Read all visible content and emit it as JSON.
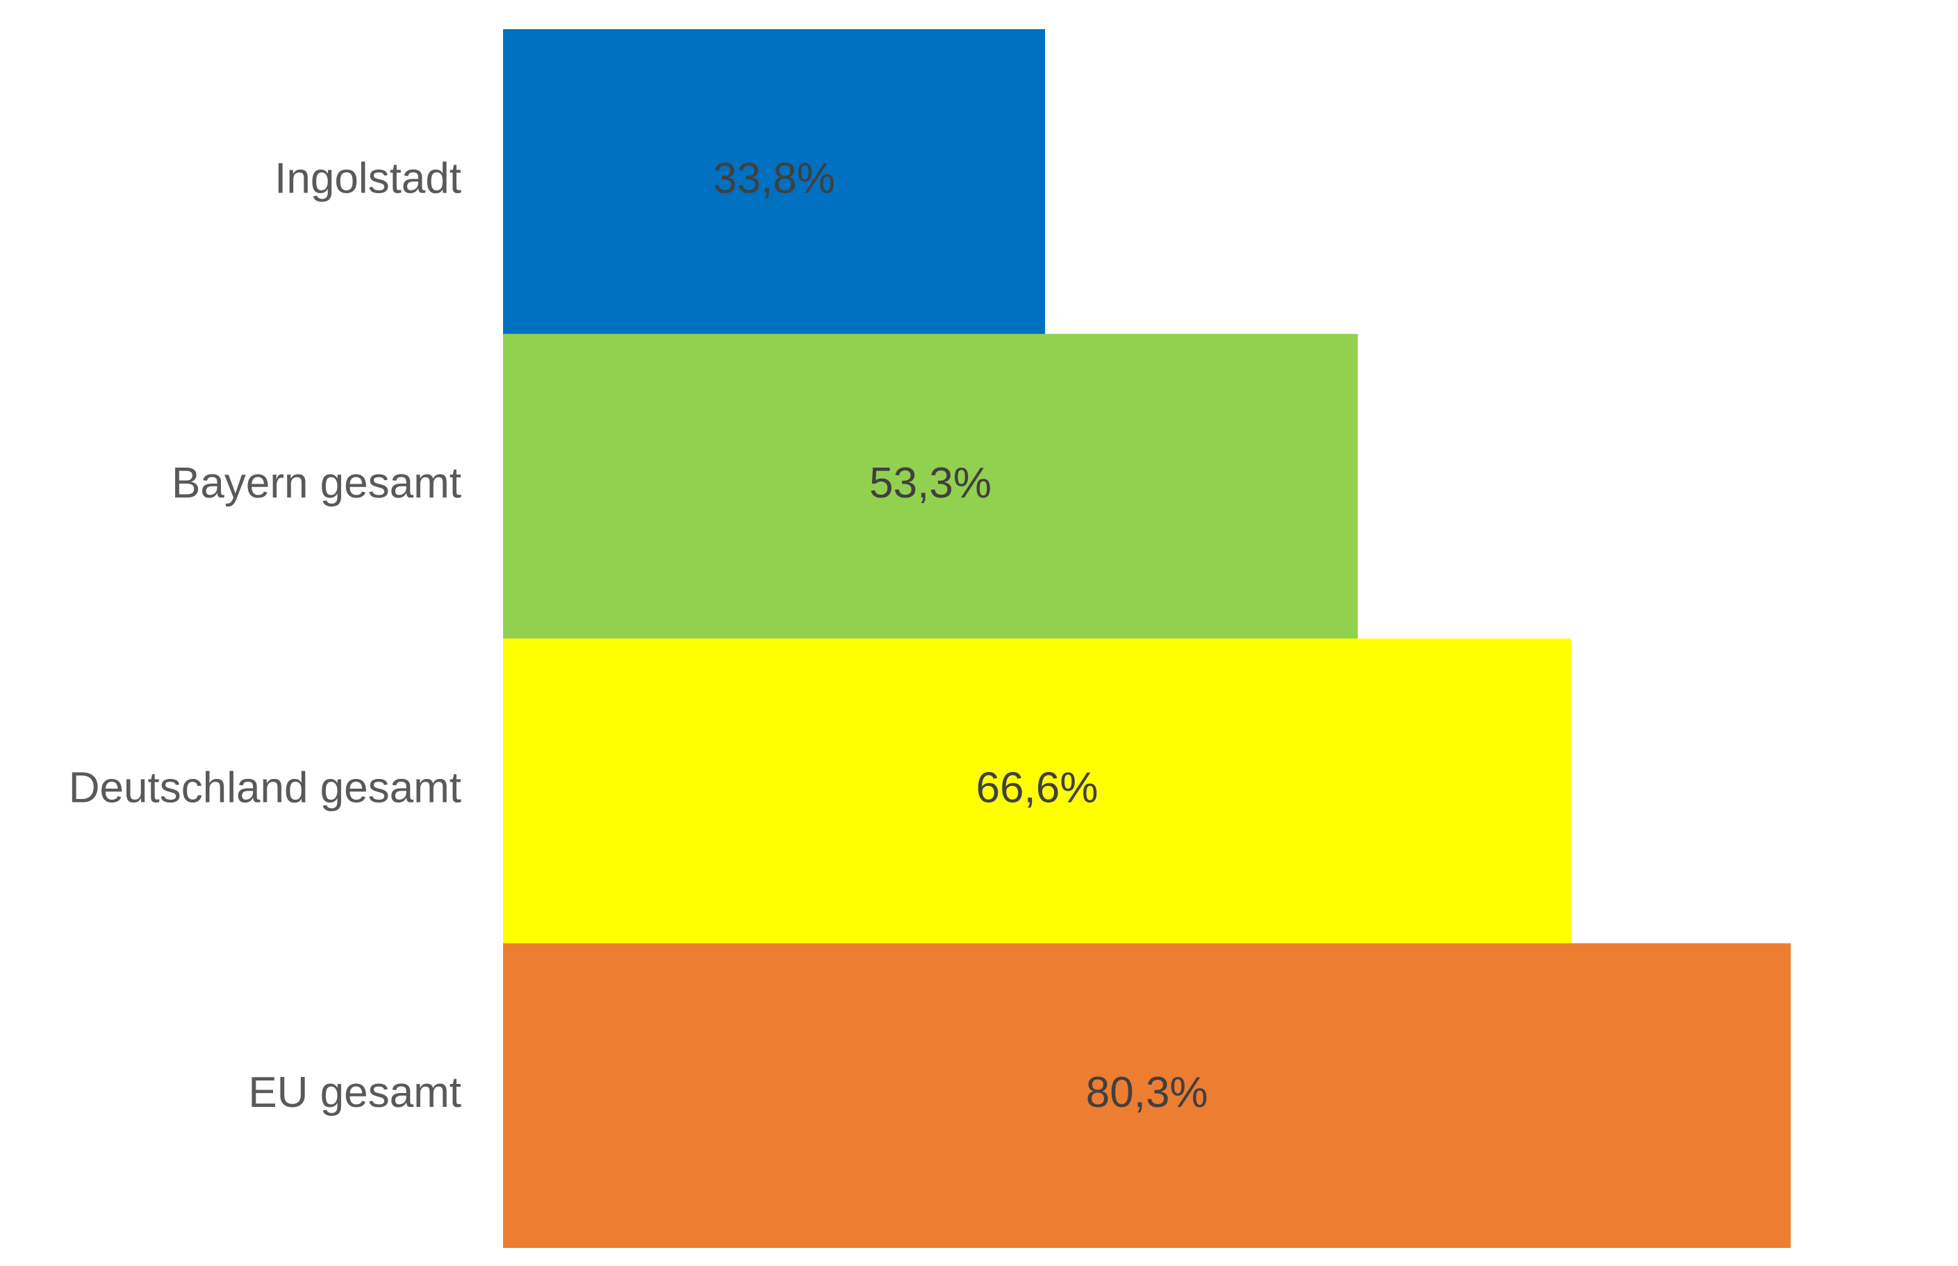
{
  "chart_data": {
    "type": "bar",
    "orientation": "horizontal",
    "categories": [
      "Ingolstadt",
      "Bayern gesamt",
      "Deutschland gesamt",
      "EU gesamt"
    ],
    "values": [
      33.8,
      53.3,
      66.6,
      80.3
    ],
    "value_labels": [
      "33,8%",
      "53,3%",
      "66,6%",
      "80,3%"
    ],
    "colors": [
      "#0070c0",
      "#92d050",
      "#ffff00",
      "#ed7d31"
    ]
  }
}
